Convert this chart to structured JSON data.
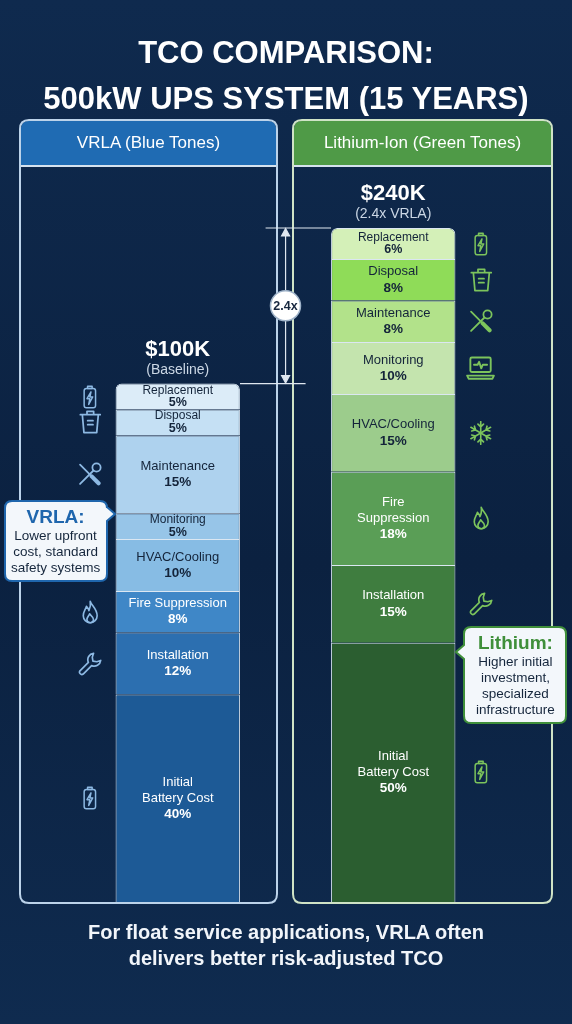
{
  "chart_data": {
    "type": "bar",
    "stacked": true,
    "title": "TCO COMPARISON:\n500kW UPS SYSTEM (15 YEARS)",
    "categories": [
      "VRLA (Blue Tones)",
      "Lithium-Ion (Green Tones)"
    ],
    "series": [
      {
        "name": "Initial Battery Cost",
        "colors": [
          "#1d5a96",
          "#2b5e30"
        ],
        "values": [
          40,
          50
        ],
        "value_labels": [
          "40%",
          "50%"
        ]
      },
      {
        "name": "Installation",
        "colors": [
          "#2c6fb0",
          "#3f7d3f"
        ],
        "values": [
          12,
          15
        ],
        "value_labels": [
          "12%",
          "15%"
        ]
      },
      {
        "name": "Fire Suppression",
        "colors": [
          "#3f87c7",
          "#5a9e56"
        ],
        "values": [
          8,
          18
        ],
        "value_labels": [
          "8%",
          "18%"
        ]
      },
      {
        "name": "HVAC/Cooling",
        "colors": [
          "#87bce4",
          "#9ccc8c"
        ],
        "values": [
          10,
          15
        ],
        "value_labels": [
          "10%",
          "15%"
        ]
      },
      {
        "name": "Monitoring",
        "colors": [
          "#97c5e8",
          "#c4e4ae"
        ],
        "values": [
          5,
          10
        ],
        "value_labels": [
          "5%",
          "10%"
        ]
      },
      {
        "name": "Maintenance",
        "colors": [
          "#aed2ee",
          "#b2e28a"
        ],
        "values": [
          15,
          8
        ],
        "value_labels": [
          "15%",
          "8%"
        ]
      },
      {
        "name": "Disposal",
        "colors": [
          "#c5e0f4",
          "#8fdc58"
        ],
        "values": [
          5,
          8
        ],
        "value_labels": [
          "5%",
          "8%"
        ]
      },
      {
        "name": "Replacement",
        "colors": [
          "#dcecf8",
          "#d4f0b8"
        ],
        "values": [
          5,
          6
        ],
        "value_labels": [
          "5%",
          "6%"
        ]
      }
    ],
    "tick_labels": "x",
    "annotations": [
      {
        "text": "$100K",
        "x": "VRLA (Blue Tones)",
        "y": 100
      },
      {
        "text": "(Baseline)",
        "x": "VRLA (Blue Tones)",
        "y": 100
      },
      {
        "text": "$240K",
        "x": "Lithium-Ion (Green Tones)",
        "y": 130
      },
      {
        "text": "(2.4x VRLA)",
        "x": "Lithium-Ion (Green Tones)",
        "y": 130
      },
      "2.4x",
      "VRLA: Lower upfront cost, standard safety systems",
      "Lithium: Higher initial investment, specialized infrastructure",
      "For float service applications, VRLA often delivers better risk-adjusted TCO"
    ]
  }
}
